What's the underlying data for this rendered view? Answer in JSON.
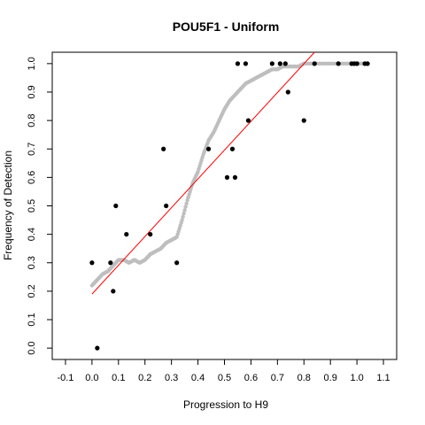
{
  "chart_data": {
    "type": "scatter",
    "title": "POU5F1 - Uniform",
    "xlabel": "Progression to H9",
    "ylabel": "Frequency of Detection",
    "xlim": [
      -0.15,
      1.15
    ],
    "ylim": [
      -0.04,
      1.04
    ],
    "x_ticks": [
      -0.1,
      0.0,
      0.1,
      0.2,
      0.3,
      0.4,
      0.5,
      0.6,
      0.7,
      0.8,
      0.9,
      1.0,
      1.1
    ],
    "x_tick_labels": [
      "-0.1",
      "0.0",
      "0.1",
      "0.2",
      "0.3",
      "0.4",
      "0.5",
      "0.6",
      "0.7",
      "0.8",
      "0.9",
      "1.0",
      "1.1"
    ],
    "y_ticks": [
      0.0,
      0.1,
      0.2,
      0.3,
      0.4,
      0.5,
      0.6,
      0.7,
      0.8,
      0.9,
      1.0
    ],
    "y_tick_labels": [
      "0.0",
      "0.1",
      "0.2",
      "0.3",
      "0.4",
      "0.5",
      "0.6",
      "0.7",
      "0.8",
      "0.9",
      "1.0"
    ],
    "grid": false,
    "series": [
      {
        "style": "points",
        "color": "#000000",
        "x": [
          0.0,
          0.02,
          0.07,
          0.08,
          0.09,
          0.13,
          0.22,
          0.27,
          0.28,
          0.32,
          0.44,
          0.51,
          0.53,
          0.54,
          0.55,
          0.58,
          0.59,
          0.68,
          0.71,
          0.73,
          0.74,
          0.8,
          0.84,
          0.93,
          0.98,
          0.99,
          1.0,
          1.03,
          1.04
        ],
        "y": [
          0.3,
          0.0,
          0.3,
          0.2,
          0.5,
          0.4,
          0.4,
          0.7,
          0.5,
          0.3,
          0.7,
          0.6,
          0.7,
          0.6,
          1.0,
          1.0,
          0.8,
          1.0,
          1.0,
          1.0,
          0.9,
          0.8,
          1.0,
          1.0,
          1.0,
          1.0,
          1.0,
          1.0,
          1.0
        ]
      },
      {
        "style": "smooth-points",
        "color": "#bebebe",
        "x": [
          0.0,
          0.02,
          0.04,
          0.06,
          0.08,
          0.1,
          0.12,
          0.14,
          0.16,
          0.18,
          0.2,
          0.22,
          0.24,
          0.26,
          0.28,
          0.3,
          0.32,
          0.34,
          0.36,
          0.38,
          0.4,
          0.42,
          0.44,
          0.46,
          0.48,
          0.5,
          0.52,
          0.54,
          0.56,
          0.58,
          0.6,
          0.62,
          0.64,
          0.66,
          0.68,
          0.7,
          0.72,
          0.74,
          0.76,
          0.78,
          0.8,
          0.85,
          0.9,
          0.95,
          1.0,
          1.04
        ],
        "y": [
          0.22,
          0.24,
          0.26,
          0.27,
          0.29,
          0.31,
          0.31,
          0.3,
          0.31,
          0.3,
          0.31,
          0.33,
          0.34,
          0.35,
          0.37,
          0.38,
          0.39,
          0.45,
          0.52,
          0.58,
          0.62,
          0.68,
          0.73,
          0.76,
          0.8,
          0.84,
          0.87,
          0.89,
          0.91,
          0.93,
          0.94,
          0.95,
          0.96,
          0.97,
          0.98,
          0.98,
          0.99,
          0.99,
          0.99,
          0.99,
          1.0,
          1.0,
          1.0,
          1.0,
          1.0,
          1.0
        ]
      },
      {
        "style": "line",
        "color": "#ff0000",
        "x": [
          0.0,
          0.84
        ],
        "y": [
          0.19,
          1.04
        ]
      }
    ]
  }
}
